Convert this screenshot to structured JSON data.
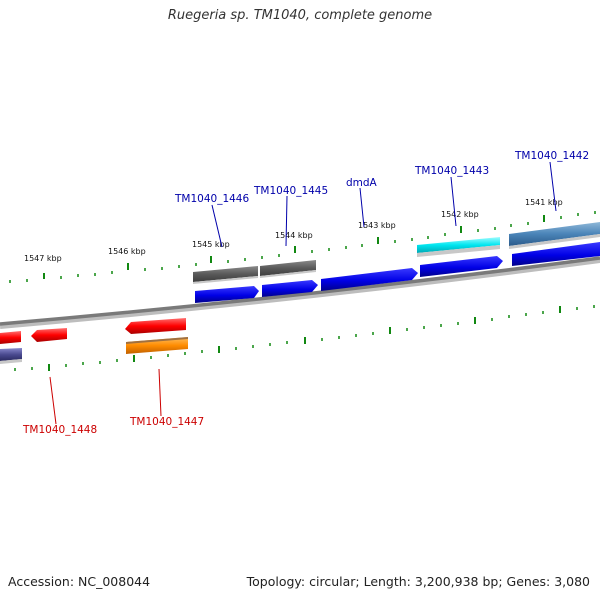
{
  "title": "Ruegeria sp. TM1040, complete genome",
  "footer": {
    "accession": "Accession: NC_008044",
    "summary": "Topology: circular; Length: 3,200,938 bp; Genes: 3,080"
  },
  "colors": {
    "forward_label": "#0000aa",
    "reverse_label": "#cc0000",
    "tick": "#118811",
    "backbone": "#888888"
  },
  "scale": {
    "ticks": [
      {
        "label": "1547 kbp"
      },
      {
        "label": "1546 kbp"
      },
      {
        "label": "1545 kbp"
      },
      {
        "label": "1544 kbp"
      },
      {
        "label": "1543 kbp"
      },
      {
        "label": "1542 kbp"
      },
      {
        "label": "1541 kbp"
      }
    ]
  },
  "features": {
    "forward_labels": [
      {
        "text": "TM1040_1446"
      },
      {
        "text": "TM1040_1445"
      },
      {
        "text": "dmdA"
      },
      {
        "text": "TM1040_1443"
      },
      {
        "text": "TM1040_1442"
      }
    ],
    "reverse_labels": [
      {
        "text": "TM1040_1448"
      },
      {
        "text": "TM1040_1447"
      }
    ]
  }
}
